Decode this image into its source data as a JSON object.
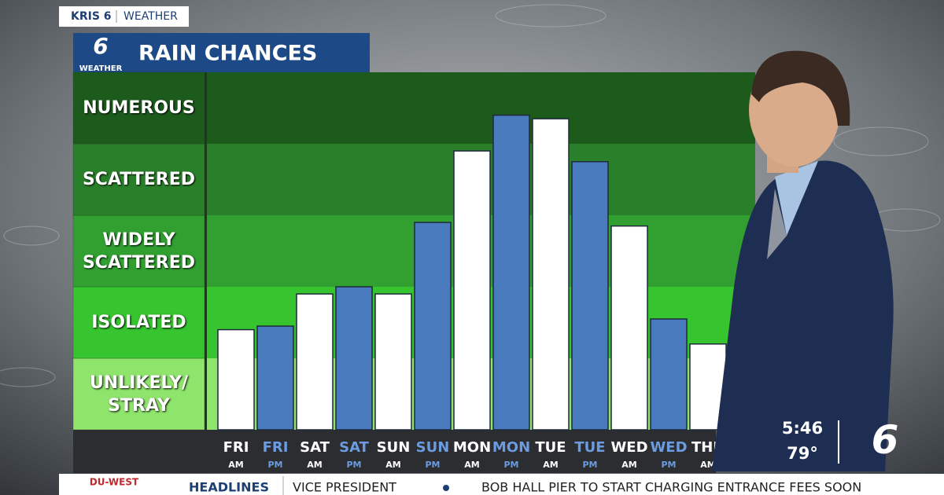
{
  "network": {
    "station": "KRIS 6",
    "section": "WEATHER",
    "logo_number": "6",
    "logo_text": "WEATHER"
  },
  "chart_data": {
    "type": "bar",
    "title": "RAIN CHANCES",
    "categories": [
      "FRI",
      "FRI",
      "SAT",
      "SAT",
      "SUN",
      "SUN",
      "MON",
      "MON",
      "TUE",
      "TUE",
      "WED",
      "WED",
      "THU"
    ],
    "periods": [
      "AM",
      "PM",
      "AM",
      "PM",
      "AM",
      "PM",
      "AM",
      "PM",
      "AM",
      "PM",
      "AM",
      "PM",
      "AM"
    ],
    "values": [
      1.4,
      1.45,
      1.9,
      2.0,
      1.9,
      2.9,
      3.9,
      4.4,
      4.35,
      3.75,
      2.85,
      1.55,
      1.2
    ],
    "colors": [
      "#ffffff",
      "#4a7bbf",
      "#ffffff",
      "#4a7bbf",
      "#ffffff",
      "#4a7bbf",
      "#ffffff",
      "#4a7bbf",
      "#ffffff",
      "#4a7bbf",
      "#ffffff",
      "#4a7bbf",
      "#ffffff"
    ],
    "ylim": [
      0,
      5
    ],
    "yticks": [
      {
        "value": 0.5,
        "label": "UNLIKELY/ STRAY"
      },
      {
        "value": 1.5,
        "label": "ISOLATED"
      },
      {
        "value": 2.5,
        "label": "WIDELY SCATTERED"
      },
      {
        "value": 3.5,
        "label": "SCATTERED"
      },
      {
        "value": 4.5,
        "label": "NUMEROUS"
      }
    ],
    "band_colors": [
      "#8fe46c",
      "#36c42f",
      "#31a031",
      "#2a7f2a",
      "#1d5b1d"
    ]
  },
  "bug": {
    "time": "5:46",
    "temperature": "79°",
    "logo_number": "6"
  },
  "ticker": {
    "sponsor": "DU-WEST",
    "label": "HEADLINES",
    "items": [
      "VICE PRESIDENT",
      "BOB HALL PIER TO START CHARGING ENTRANCE FEES SOON"
    ]
  }
}
